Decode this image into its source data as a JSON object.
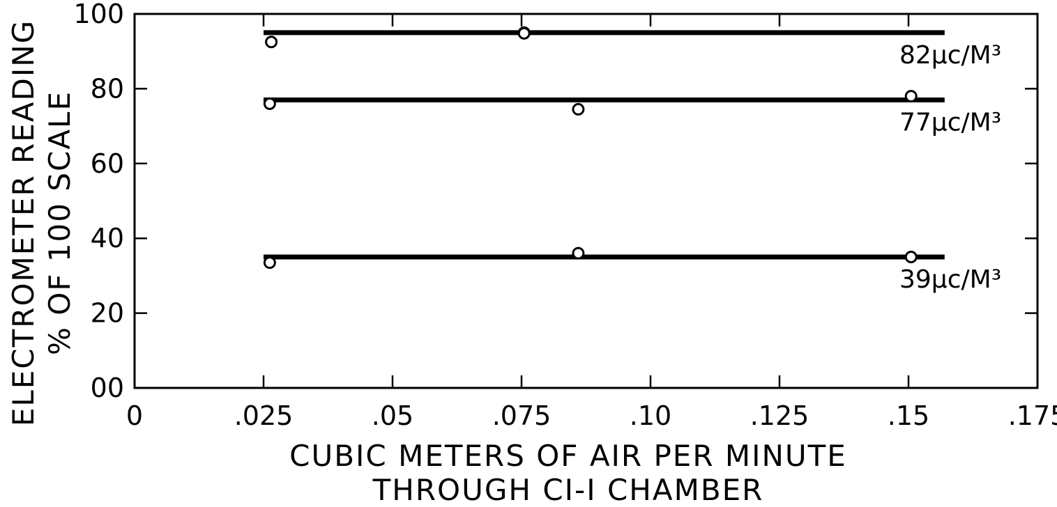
{
  "chart_data": {
    "type": "scatter",
    "xlabel_lines": [
      "CUBIC METERS OF AIR PER MINUTE",
      "THROUGH CI-I CHAMBER"
    ],
    "ylabel_lines": [
      "ELECTROMETER READING",
      "% OF 100 SCALE"
    ],
    "xlim": [
      0,
      0.175
    ],
    "ylim": [
      0,
      100
    ],
    "x_ticks": [
      {
        "value": 0,
        "label": "0"
      },
      {
        "value": 0.025,
        "label": ".025"
      },
      {
        "value": 0.05,
        "label": ".05"
      },
      {
        "value": 0.075,
        "label": ".075"
      },
      {
        "value": 0.1,
        "label": ".10"
      },
      {
        "value": 0.125,
        "label": ".125"
      },
      {
        "value": 0.15,
        "label": ".15"
      },
      {
        "value": 0.175,
        "label": ".175"
      }
    ],
    "y_ticks": [
      {
        "value": 0,
        "label": "00"
      },
      {
        "value": 20,
        "label": "20"
      },
      {
        "value": 40,
        "label": "40"
      },
      {
        "value": 60,
        "label": "60"
      },
      {
        "value": 80,
        "label": "80"
      },
      {
        "value": 100,
        "label": "100"
      }
    ],
    "grid": false,
    "series": [
      {
        "name": "82µc/M³",
        "line_y": 95,
        "line_x": [
          0.025,
          0.157
        ],
        "points": [
          {
            "x": 0.0265,
            "y": 92.5
          },
          {
            "x": 0.0755,
            "y": 95
          },
          {
            "x": 0.0755,
            "y": 94.8
          }
        ]
      },
      {
        "name": "77µc/M³",
        "line_y": 77,
        "line_x": [
          0.025,
          0.157
        ],
        "points": [
          {
            "x": 0.0262,
            "y": 76
          },
          {
            "x": 0.086,
            "y": 74.5
          },
          {
            "x": 0.1505,
            "y": 78
          }
        ]
      },
      {
        "name": "39µc/M³",
        "line_y": 35,
        "line_x": [
          0.025,
          0.157
        ],
        "points": [
          {
            "x": 0.0262,
            "y": 33.5
          },
          {
            "x": 0.086,
            "y": 36
          },
          {
            "x": 0.1505,
            "y": 35
          }
        ]
      }
    ]
  }
}
